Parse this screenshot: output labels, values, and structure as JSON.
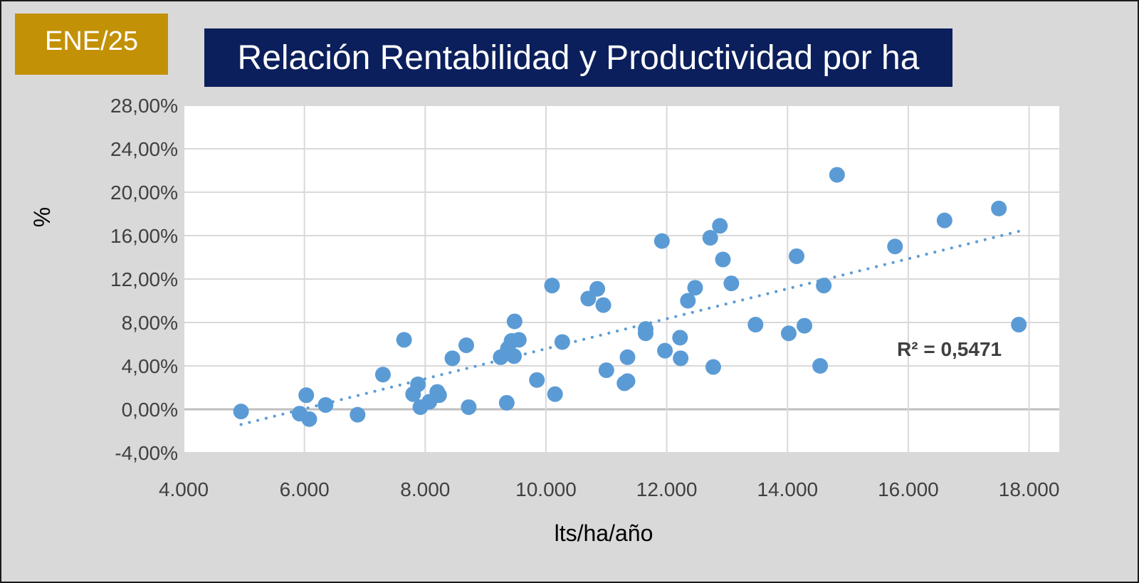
{
  "badge": {
    "label": "ENE/25",
    "color": "#c39106"
  },
  "header": {
    "title": "Relación Rentabilidad y Productividad por ha",
    "color": "#0b1f5c"
  },
  "chart_data": {
    "type": "scatter",
    "xlabel": "lts/ha/año",
    "ylabel": "%",
    "xlim": [
      4000,
      18500
    ],
    "ylim": [
      -4,
      28
    ],
    "x_ticks": [
      4000,
      6000,
      8000,
      10000,
      12000,
      14000,
      16000,
      18000
    ],
    "x_tick_labels": [
      "4.000",
      "6.000",
      "8.000",
      "10.000",
      "12.000",
      "14.000",
      "16.000",
      "18.000"
    ],
    "y_ticks": [
      -4,
      0,
      4,
      8,
      12,
      16,
      20,
      24,
      28
    ],
    "y_tick_labels": [
      "-4,00%",
      "0,00%",
      "4,00%",
      "8,00%",
      "12,00%",
      "16,00%",
      "20,00%",
      "24,00%",
      "28,00%"
    ],
    "grid": true,
    "point_color": "#5b9bd5",
    "series": [
      {
        "points": [
          [
            4950,
            -0.2
          ],
          [
            5920,
            -0.4
          ],
          [
            6030,
            1.3
          ],
          [
            6080,
            -0.9
          ],
          [
            6350,
            0.4
          ],
          [
            6880,
            -0.5
          ],
          [
            7300,
            3.2
          ],
          [
            7650,
            6.4
          ],
          [
            7800,
            1.4
          ],
          [
            7880,
            2.3
          ],
          [
            7920,
            0.2
          ],
          [
            8070,
            0.7
          ],
          [
            8200,
            1.6
          ],
          [
            8230,
            1.3
          ],
          [
            8450,
            4.7
          ],
          [
            8680,
            5.9
          ],
          [
            8720,
            0.2
          ],
          [
            9250,
            4.8
          ],
          [
            9350,
            0.6
          ],
          [
            9370,
            5.6
          ],
          [
            9430,
            6.3
          ],
          [
            9470,
            4.9
          ],
          [
            9480,
            8.1
          ],
          [
            9550,
            6.4
          ],
          [
            9850,
            2.7
          ],
          [
            10100,
            11.4
          ],
          [
            10150,
            1.4
          ],
          [
            10270,
            6.2
          ],
          [
            10700,
            10.2
          ],
          [
            10850,
            11.1
          ],
          [
            10950,
            9.6
          ],
          [
            11000,
            3.6
          ],
          [
            11300,
            2.4
          ],
          [
            11350,
            2.6
          ],
          [
            11350,
            4.8
          ],
          [
            11650,
            7.4
          ],
          [
            11650,
            7.0
          ],
          [
            11920,
            15.5
          ],
          [
            11970,
            5.4
          ],
          [
            12220,
            6.6
          ],
          [
            12230,
            4.7
          ],
          [
            12350,
            10.0
          ],
          [
            12470,
            11.2
          ],
          [
            12720,
            15.8
          ],
          [
            12770,
            3.9
          ],
          [
            12880,
            16.9
          ],
          [
            12930,
            13.8
          ],
          [
            13070,
            11.6
          ],
          [
            13470,
            7.8
          ],
          [
            14020,
            7.0
          ],
          [
            14150,
            14.1
          ],
          [
            14280,
            7.7
          ],
          [
            14540,
            4.0
          ],
          [
            14600,
            11.4
          ],
          [
            14820,
            21.6
          ],
          [
            15780,
            15.0
          ],
          [
            16600,
            17.4
          ],
          [
            17500,
            18.5
          ],
          [
            17830,
            7.8
          ]
        ]
      }
    ],
    "trendline": {
      "type": "linear",
      "x": [
        4950,
        17830
      ],
      "y": [
        -1.4,
        16.4
      ],
      "color": "#5b9bd5",
      "style": "dotted"
    },
    "annotations": [
      {
        "text": "R² = 0,5471"
      }
    ]
  }
}
